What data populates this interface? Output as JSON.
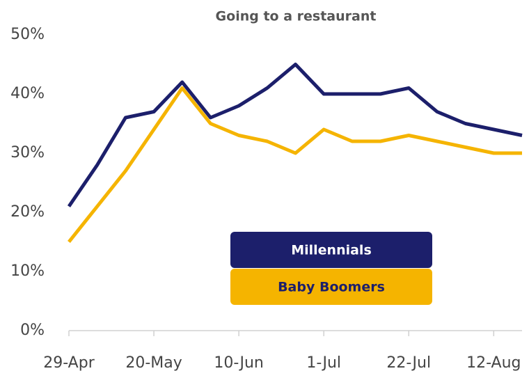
{
  "chart_data": {
    "type": "line",
    "title": "Going to a restaurant",
    "categories": [
      "29-Apr",
      null,
      null,
      "20-May",
      null,
      null,
      "10-Jun",
      null,
      null,
      "1-Jul",
      null,
      null,
      "22-Jul",
      null,
      null,
      "12-Aug",
      null
    ],
    "series": [
      {
        "name": "Millennials",
        "color": "#1c1f6b",
        "values": [
          21,
          28,
          36,
          37,
          42,
          36,
          38,
          41,
          45,
          40,
          40,
          40,
          41,
          37,
          35,
          34,
          33
        ]
      },
      {
        "name": "Baby Boomers",
        "color": "#f5b400",
        "values": [
          15,
          21,
          27,
          34,
          41,
          35,
          33,
          32,
          30,
          34,
          32,
          32,
          33,
          32,
          31,
          30,
          30
        ]
      }
    ],
    "ylim": [
      0,
      50
    ],
    "yticks": [
      {
        "value": 0,
        "label": "0%"
      },
      {
        "value": 10,
        "label": "10%"
      },
      {
        "value": 20,
        "label": "20%"
      },
      {
        "value": 30,
        "label": "30%"
      },
      {
        "value": 40,
        "label": "40%"
      },
      {
        "value": 50,
        "label": "50%"
      }
    ],
    "grid": false
  }
}
